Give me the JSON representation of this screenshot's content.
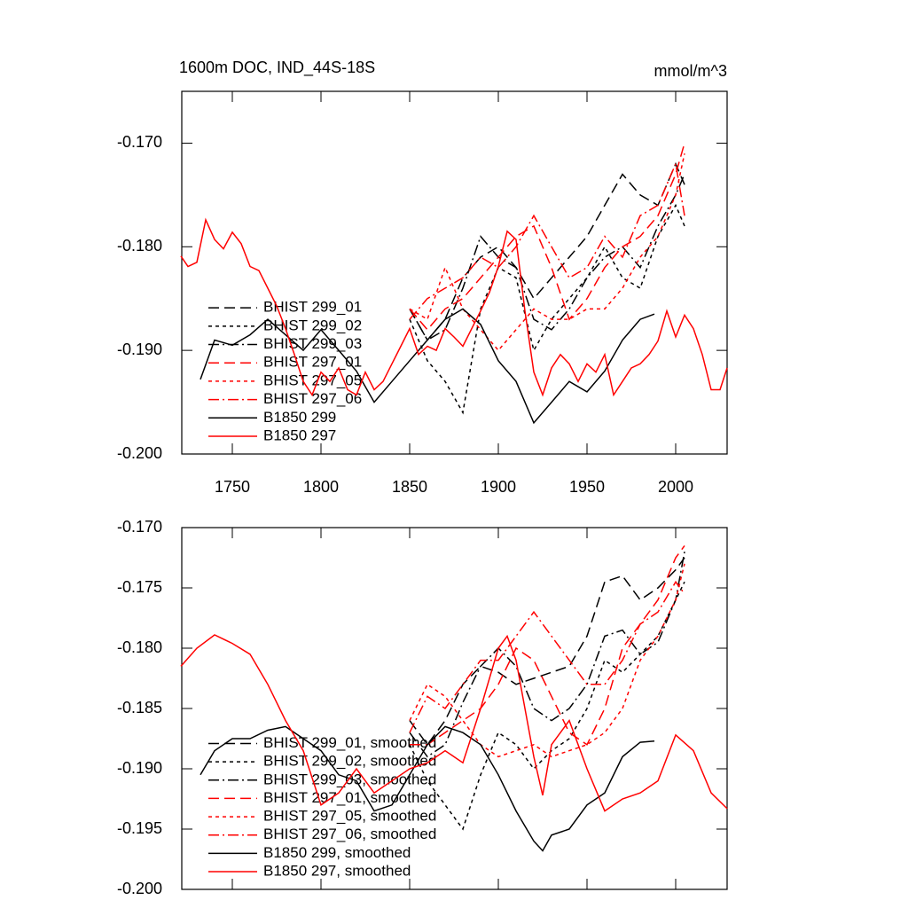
{
  "chart_data": [
    {
      "type": "line",
      "title": "1600m DOC, IND_44S-18S",
      "units": "mmol/m^3",
      "xlim": [
        1721.5,
        2029
      ],
      "xticks": [
        1750,
        1800,
        1850,
        1900,
        1950,
        2000
      ],
      "ylim": [
        -0.2,
        -0.165
      ],
      "yticks": [
        {
          "value": -0.17,
          "label": "-0.170"
        },
        {
          "value": -0.18,
          "label": "-0.180"
        },
        {
          "value": -0.19,
          "label": "-0.190"
        },
        {
          "value": -0.2,
          "label": "-0.200"
        }
      ],
      "legend": "lower left",
      "series": [
        {
          "name": "BHIST 299_01",
          "color": "#000000",
          "dash": "12 6",
          "x": [
            1850,
            1860,
            1870,
            1880,
            1890,
            1900,
            1910,
            1920,
            1930,
            1940,
            1950,
            1960,
            1970,
            1980,
            1990,
            2000,
            2005
          ],
          "values": [
            -0.186,
            -0.189,
            -0.187,
            -0.183,
            -0.181,
            -0.18,
            -0.182,
            -0.185,
            -0.183,
            -0.181,
            -0.179,
            -0.176,
            -0.173,
            -0.175,
            -0.176,
            -0.172,
            -0.174
          ]
        },
        {
          "name": "BHIST 299_02",
          "color": "#000000",
          "dash": "4 4",
          "x": [
            1850,
            1860,
            1870,
            1880,
            1890,
            1900,
            1910,
            1920,
            1930,
            1940,
            1950,
            1960,
            1970,
            1980,
            1990,
            2000,
            2005
          ],
          "values": [
            -0.187,
            -0.191,
            -0.193,
            -0.196,
            -0.186,
            -0.182,
            -0.183,
            -0.19,
            -0.187,
            -0.185,
            -0.183,
            -0.18,
            -0.183,
            -0.184,
            -0.179,
            -0.176,
            -0.178
          ]
        },
        {
          "name": "BHIST 299_03",
          "color": "#000000",
          "dash": "12 4 2 4",
          "x": [
            1850,
            1860,
            1870,
            1880,
            1890,
            1900,
            1910,
            1920,
            1930,
            1940,
            1950,
            1960,
            1970,
            1980,
            1990,
            2000,
            2005
          ],
          "values": [
            -0.186,
            -0.189,
            -0.188,
            -0.184,
            -0.179,
            -0.181,
            -0.182,
            -0.187,
            -0.188,
            -0.186,
            -0.183,
            -0.181,
            -0.18,
            -0.182,
            -0.178,
            -0.175,
            -0.173
          ]
        },
        {
          "name": "BHIST 297_01",
          "color": "#ff0000",
          "dash": "12 6",
          "x": [
            1850,
            1860,
            1870,
            1880,
            1890,
            1900,
            1910,
            1920,
            1930,
            1940,
            1950,
            1960,
            1970,
            1980,
            1990,
            2000,
            2005
          ],
          "values": [
            -0.186,
            -0.188,
            -0.186,
            -0.185,
            -0.183,
            -0.181,
            -0.179,
            -0.178,
            -0.182,
            -0.187,
            -0.185,
            -0.182,
            -0.18,
            -0.179,
            -0.177,
            -0.173,
            -0.17
          ]
        },
        {
          "name": "BHIST 297_05",
          "color": "#ff0000",
          "dash": "4 4",
          "x": [
            1850,
            1860,
            1870,
            1880,
            1890,
            1900,
            1910,
            1920,
            1930,
            1940,
            1950,
            1960,
            1970,
            1980,
            1990,
            2000,
            2005
          ],
          "values": [
            -0.186,
            -0.187,
            -0.182,
            -0.186,
            -0.188,
            -0.19,
            -0.188,
            -0.186,
            -0.187,
            -0.187,
            -0.186,
            -0.186,
            -0.184,
            -0.181,
            -0.179,
            -0.175,
            -0.171
          ]
        },
        {
          "name": "BHIST 297_06",
          "color": "#ff0000",
          "dash": "12 4 2 4",
          "x": [
            1850,
            1860,
            1870,
            1880,
            1890,
            1900,
            1910,
            1920,
            1930,
            1940,
            1950,
            1960,
            1970,
            1980,
            1990,
            2000,
            2005
          ],
          "values": [
            -0.187,
            -0.185,
            -0.184,
            -0.183,
            -0.181,
            -0.182,
            -0.18,
            -0.177,
            -0.18,
            -0.183,
            -0.182,
            -0.179,
            -0.181,
            -0.177,
            -0.176,
            -0.172,
            -0.177
          ]
        },
        {
          "name": "B1850 299",
          "color": "#000000",
          "dash": "none",
          "x": [
            1732,
            1740,
            1750,
            1760,
            1770,
            1780,
            1790,
            1800,
            1810,
            1820,
            1830,
            1840,
            1850,
            1860,
            1870,
            1880,
            1890,
            1900,
            1910,
            1920,
            1930,
            1940,
            1950,
            1960,
            1970,
            1980,
            1988
          ],
          "values": [
            -0.1928,
            -0.189,
            -0.1895,
            -0.1885,
            -0.187,
            -0.1885,
            -0.19,
            -0.188,
            -0.19,
            -0.192,
            -0.195,
            -0.193,
            -0.191,
            -0.189,
            -0.187,
            -0.186,
            -0.1875,
            -0.191,
            -0.193,
            -0.197,
            -0.195,
            -0.193,
            -0.194,
            -0.192,
            -0.189,
            -0.187,
            -0.1865
          ]
        },
        {
          "name": "B1850 297",
          "color": "#ff0000",
          "dash": "none",
          "x": [
            1721,
            1725,
            1730,
            1735,
            1740,
            1745,
            1750,
            1755,
            1760,
            1765,
            1770,
            1775,
            1780,
            1785,
            1790,
            1795,
            1800,
            1805,
            1810,
            1815,
            1820,
            1825,
            1830,
            1835,
            1840,
            1845,
            1850,
            1855,
            1860,
            1865,
            1870,
            1875,
            1880,
            1885,
            1890,
            1895,
            1900,
            1905,
            1910,
            1915,
            1920,
            1925,
            1930,
            1935,
            1940,
            1945,
            1950,
            1955,
            1960,
            1965,
            1970,
            1975,
            1980,
            1985,
            1990,
            1995,
            2000,
            2005,
            2010,
            2015,
            2020,
            2025,
            2029
          ],
          "values": [
            -0.1809,
            -0.1819,
            -0.1815,
            -0.1774,
            -0.1793,
            -0.1802,
            -0.1786,
            -0.1797,
            -0.1819,
            -0.1823,
            -0.184,
            -0.1857,
            -0.1879,
            -0.1904,
            -0.193,
            -0.1943,
            -0.1921,
            -0.193,
            -0.1917,
            -0.1938,
            -0.1943,
            -0.1921,
            -0.1938,
            -0.193,
            -0.1913,
            -0.1896,
            -0.1879,
            -0.1904,
            -0.1896,
            -0.19,
            -0.1879,
            -0.1887,
            -0.1896,
            -0.1879,
            -0.1862,
            -0.1844,
            -0.1819,
            -0.1785,
            -0.1793,
            -0.1862,
            -0.1921,
            -0.1943,
            -0.1917,
            -0.1904,
            -0.1913,
            -0.193,
            -0.1913,
            -0.1921,
            -0.1904,
            -0.1943,
            -0.193,
            -0.1917,
            -0.1913,
            -0.1904,
            -0.1891,
            -0.1862,
            -0.1887,
            -0.1866,
            -0.1879,
            -0.1904,
            -0.1938,
            -0.1938,
            -0.1917
          ]
        }
      ]
    },
    {
      "type": "line",
      "xlim": [
        1721.5,
        2029
      ],
      "xticks": [
        1750,
        1800,
        1850,
        1900,
        1950,
        2000
      ],
      "ylim": [
        -0.2,
        -0.17
      ],
      "yticks": [
        {
          "value": -0.17,
          "label": "-0.170"
        },
        {
          "value": -0.175,
          "label": "-0.175"
        },
        {
          "value": -0.18,
          "label": "-0.180"
        },
        {
          "value": -0.185,
          "label": "-0.185"
        },
        {
          "value": -0.19,
          "label": "-0.190"
        },
        {
          "value": -0.195,
          "label": "-0.195"
        },
        {
          "value": -0.2,
          "label": "-0.200"
        }
      ],
      "legend": "lower left",
      "series": [
        {
          "name": "BHIST 299_01, smoothed",
          "color": "#000000",
          "dash": "12 6",
          "x": [
            1850,
            1860,
            1870,
            1880,
            1890,
            1900,
            1910,
            1920,
            1930,
            1940,
            1950,
            1960,
            1970,
            1980,
            1990,
            2000,
            2005
          ],
          "values": [
            -0.186,
            -0.188,
            -0.186,
            -0.183,
            -0.1815,
            -0.182,
            -0.183,
            -0.1825,
            -0.182,
            -0.1815,
            -0.179,
            -0.1745,
            -0.174,
            -0.176,
            -0.175,
            -0.1735,
            -0.1725
          ]
        },
        {
          "name": "BHIST 299_02, smoothed",
          "color": "#000000",
          "dash": "4 4",
          "x": [
            1850,
            1860,
            1870,
            1880,
            1890,
            1900,
            1910,
            1920,
            1930,
            1940,
            1950,
            1960,
            1970,
            1980,
            1990,
            2000,
            2005
          ],
          "values": [
            -0.188,
            -0.191,
            -0.193,
            -0.195,
            -0.1905,
            -0.187,
            -0.188,
            -0.19,
            -0.1885,
            -0.1875,
            -0.185,
            -0.181,
            -0.182,
            -0.1805,
            -0.179,
            -0.176,
            -0.1745
          ]
        },
        {
          "name": "BHIST 299_03, smoothed",
          "color": "#000000",
          "dash": "12 4 2 4",
          "x": [
            1850,
            1860,
            1870,
            1880,
            1890,
            1900,
            1910,
            1920,
            1930,
            1940,
            1950,
            1960,
            1970,
            1980,
            1990,
            2000,
            2005
          ],
          "values": [
            -0.187,
            -0.189,
            -0.188,
            -0.1845,
            -0.1815,
            -0.18,
            -0.1815,
            -0.185,
            -0.186,
            -0.185,
            -0.183,
            -0.179,
            -0.1785,
            -0.1805,
            -0.1795,
            -0.176,
            -0.172
          ]
        },
        {
          "name": "BHIST 297_01, smoothed",
          "color": "#ff0000",
          "dash": "12 6",
          "x": [
            1850,
            1860,
            1870,
            1880,
            1890,
            1900,
            1910,
            1920,
            1930,
            1940,
            1950,
            1960,
            1970,
            1980,
            1990,
            2000,
            2005
          ],
          "values": [
            -0.188,
            -0.188,
            -0.187,
            -0.186,
            -0.185,
            -0.183,
            -0.18,
            -0.181,
            -0.184,
            -0.187,
            -0.188,
            -0.185,
            -0.18,
            -0.178,
            -0.176,
            -0.1725,
            -0.1715
          ]
        },
        {
          "name": "BHIST 297_05, smoothed",
          "color": "#ff0000",
          "dash": "4 4",
          "x": [
            1850,
            1860,
            1870,
            1880,
            1890,
            1900,
            1910,
            1920,
            1930,
            1940,
            1950,
            1960,
            1970,
            1980,
            1990,
            2000,
            2005
          ],
          "values": [
            -0.186,
            -0.183,
            -0.184,
            -0.186,
            -0.188,
            -0.189,
            -0.1885,
            -0.188,
            -0.189,
            -0.1885,
            -0.188,
            -0.187,
            -0.185,
            -0.181,
            -0.179,
            -0.176,
            -0.173
          ]
        },
        {
          "name": "BHIST 297_06, smoothed",
          "color": "#ff0000",
          "dash": "12 4 2 4",
          "x": [
            1850,
            1860,
            1870,
            1880,
            1890,
            1900,
            1910,
            1920,
            1930,
            1940,
            1950,
            1960,
            1970,
            1980,
            1990,
            2000,
            2005
          ],
          "values": [
            -0.187,
            -0.184,
            -0.185,
            -0.183,
            -0.181,
            -0.181,
            -0.179,
            -0.177,
            -0.179,
            -0.181,
            -0.183,
            -0.183,
            -0.181,
            -0.178,
            -0.177,
            -0.1745,
            -0.1755
          ]
        },
        {
          "name": "B1850 299, smoothed",
          "color": "#000000",
          "dash": "none",
          "x": [
            1732,
            1740,
            1750,
            1760,
            1770,
            1780,
            1790,
            1800,
            1810,
            1820,
            1830,
            1840,
            1850,
            1860,
            1870,
            1880,
            1890,
            1900,
            1910,
            1920,
            1925,
            1930,
            1940,
            1950,
            1960,
            1970,
            1980,
            1988
          ],
          "values": [
            -0.1905,
            -0.1885,
            -0.1875,
            -0.1875,
            -0.1868,
            -0.1865,
            -0.1875,
            -0.1885,
            -0.1905,
            -0.191,
            -0.1935,
            -0.193,
            -0.1905,
            -0.188,
            -0.1865,
            -0.187,
            -0.188,
            -0.1905,
            -0.1935,
            -0.196,
            -0.1968,
            -0.1955,
            -0.195,
            -0.193,
            -0.192,
            -0.189,
            -0.1878,
            -0.1877
          ]
        },
        {
          "name": "B1850 297, smoothed",
          "color": "#ff0000",
          "dash": "none",
          "x": [
            1721,
            1730,
            1740,
            1750,
            1760,
            1770,
            1780,
            1790,
            1800,
            1810,
            1820,
            1830,
            1840,
            1850,
            1860,
            1870,
            1880,
            1890,
            1900,
            1905,
            1910,
            1920,
            1925,
            1930,
            1940,
            1950,
            1960,
            1970,
            1980,
            1990,
            2000,
            2010,
            2020,
            2029
          ],
          "values": [
            -0.1815,
            -0.18,
            -0.1789,
            -0.1796,
            -0.1805,
            -0.183,
            -0.186,
            -0.1885,
            -0.193,
            -0.192,
            -0.19,
            -0.192,
            -0.191,
            -0.19,
            -0.1895,
            -0.1885,
            -0.1895,
            -0.185,
            -0.18,
            -0.179,
            -0.181,
            -0.189,
            -0.1922,
            -0.188,
            -0.186,
            -0.19,
            -0.1935,
            -0.1925,
            -0.192,
            -0.191,
            -0.1872,
            -0.1885,
            -0.192,
            -0.1933
          ]
        }
      ]
    }
  ]
}
